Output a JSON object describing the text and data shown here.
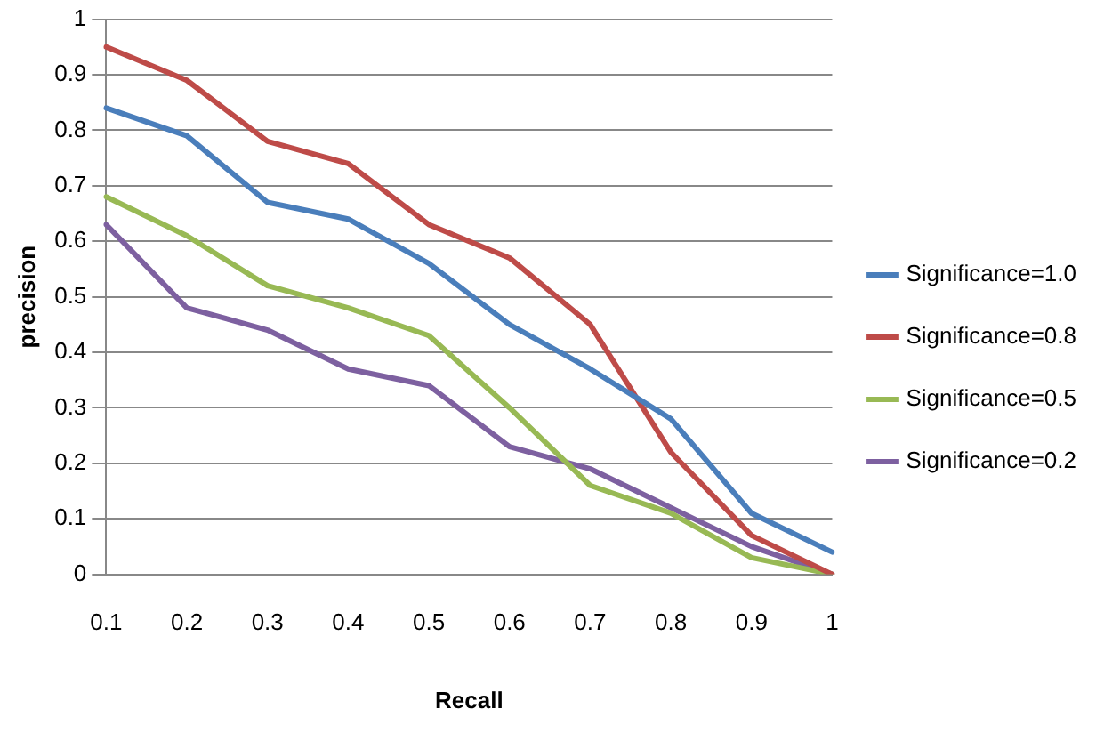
{
  "chart_data": {
    "type": "line",
    "xlabel": "Recall",
    "ylabel": "precision",
    "categories": [
      "0.1",
      "0.2",
      "0.3",
      "0.4",
      "0.5",
      "0.6",
      "0.7",
      "0.8",
      "0.9",
      "1"
    ],
    "series": [
      {
        "name": "Significance=1.0",
        "color": "#4a7ebb",
        "values": [
          0.84,
          0.79,
          0.67,
          0.64,
          0.56,
          0.45,
          0.37,
          0.28,
          0.11,
          0.04
        ]
      },
      {
        "name": "Significance=0.8",
        "color": "#be4b48",
        "values": [
          0.95,
          0.89,
          0.78,
          0.74,
          0.63,
          0.57,
          0.45,
          0.22,
          0.07,
          0
        ]
      },
      {
        "name": "Significance=0.5",
        "color": "#98b954",
        "values": [
          0.68,
          0.61,
          0.52,
          0.48,
          0.43,
          0.3,
          0.16,
          0.11,
          0.03,
          0
        ]
      },
      {
        "name": "Significance=0.2",
        "color": "#7d60a0",
        "values": [
          0.63,
          0.48,
          0.44,
          0.37,
          0.34,
          0.23,
          0.19,
          0.12,
          0.05,
          0
        ]
      }
    ],
    "ylim": [
      0,
      1
    ],
    "yticks": [
      0,
      0.1,
      0.2,
      0.3,
      0.4,
      0.5,
      0.6,
      0.7,
      0.8,
      0.9,
      1
    ],
    "grid": "y",
    "legend": "right",
    "marker": "none",
    "line_style": "solid"
  }
}
